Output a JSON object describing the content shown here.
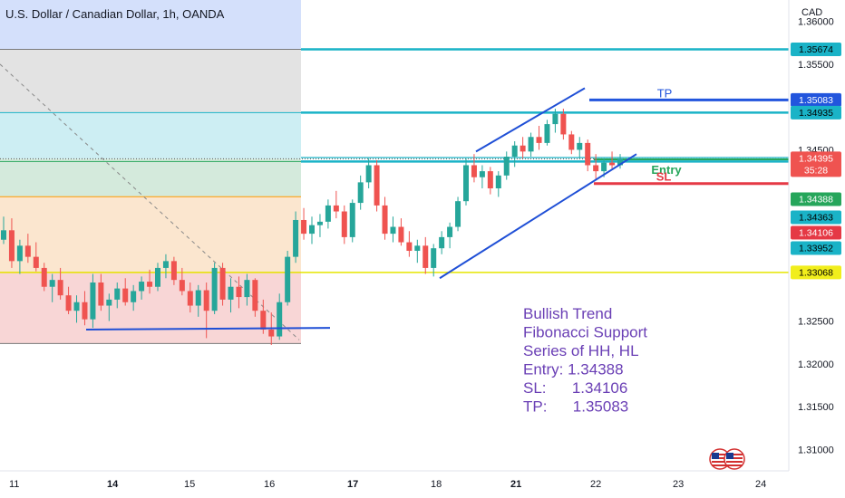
{
  "header": {
    "title": "U.S. Dollar / Canadian Dollar, 1h, OANDA",
    "currency": "CAD"
  },
  "chart_data": {
    "type": "candlestick",
    "symbol": "USD/CAD",
    "interval": "1h",
    "broker": "OANDA",
    "ylim": [
      1.3075,
      1.3625
    ],
    "price_ticks": [
      "1.36000",
      "1.35500",
      "1.34500",
      "1.32500",
      "1.32000",
      "1.31500",
      "1.31000"
    ],
    "x_ticks": [
      "11",
      "14",
      "15",
      "16",
      "17",
      "18",
      "21",
      "22",
      "23",
      "24"
    ],
    "fib_zones": [
      {
        "top": 1.3625,
        "bottom": 1.35674,
        "fill": "#d4e0fb"
      },
      {
        "top": 1.35674,
        "bottom": 1.34935,
        "fill": "#e3e3e3"
      },
      {
        "top": 1.34935,
        "bottom": 1.34395,
        "fill": "#cdeef3"
      },
      {
        "top": 1.34395,
        "bottom": 1.34363,
        "fill": "#d4eadc"
      },
      {
        "top": 1.34363,
        "bottom": 1.33952,
        "fill": "#d4eadc"
      },
      {
        "top": 1.33952,
        "bottom": 1.33068,
        "fill": "#fbe6cf"
      },
      {
        "top": 1.33068,
        "bottom": 1.32237,
        "fill": "#f8d6d6"
      }
    ],
    "levels": [
      {
        "price": 1.35674,
        "label": "1.35674",
        "color": "#1ab3c7",
        "labelBg": "#1ab3c7",
        "labelText": "#000000"
      },
      {
        "price": 1.35083,
        "label": "1.35083",
        "color": "#2255dd",
        "labelBg": "#2255dd",
        "labelText": "#ffffff"
      },
      {
        "price": 1.34935,
        "label": "1.34935",
        "color": "#1ab3c7",
        "labelBg": "#1ab3c7",
        "labelText": "#000000"
      },
      {
        "price": 1.34395,
        "label": "1.34395",
        "color": "#e53935",
        "labelBg": "#ef5350",
        "labelText": "#ffffff",
        "sublabel": "35:28"
      },
      {
        "price": 1.34388,
        "label": "1.34388",
        "color": "#26a65b",
        "labelBg": "#26a65b",
        "labelText": "#ffffff"
      },
      {
        "price": 1.34363,
        "label": "1.34363",
        "color": "#1ab3c7",
        "labelBg": "#1ab3c7",
        "labelText": "#000000"
      },
      {
        "price": 1.34106,
        "label": "1.34106",
        "color": "#e53945",
        "labelBg": "#e53945",
        "labelText": "#ffffff"
      },
      {
        "price": 1.33952,
        "label": "1.33952",
        "color": "#1ab3c7",
        "labelBg": "#1ab3c7",
        "labelText": "#000000"
      },
      {
        "price": 1.33068,
        "label": "1.33068",
        "color": "#e6e600",
        "labelBg": "#f1ee1c",
        "labelText": "#000000"
      }
    ],
    "trade": {
      "tp_label": "TP",
      "entry_label": "Entry",
      "sl_label": "SL",
      "tp_color": "#2255dd",
      "entry_color": "#26a65b",
      "sl_color": "#e53945"
    },
    "candles": [
      [
        1.3345,
        1.3372,
        1.334,
        1.3356
      ],
      [
        1.3356,
        1.337,
        1.3312,
        1.332
      ],
      [
        1.332,
        1.3345,
        1.3305,
        1.3338
      ],
      [
        1.3338,
        1.3352,
        1.3318,
        1.3325
      ],
      [
        1.3325,
        1.3342,
        1.3308,
        1.3312
      ],
      [
        1.3312,
        1.3318,
        1.3285,
        1.329
      ],
      [
        1.329,
        1.3305,
        1.3272,
        1.3298
      ],
      [
        1.3298,
        1.3312,
        1.3275,
        1.328
      ],
      [
        1.328,
        1.329,
        1.3258,
        1.3262
      ],
      [
        1.3262,
        1.328,
        1.3248,
        1.3272
      ],
      [
        1.3272,
        1.3285,
        1.3245,
        1.3252
      ],
      [
        1.3252,
        1.3305,
        1.3242,
        1.3295
      ],
      [
        1.3295,
        1.3305,
        1.3262,
        1.3268
      ],
      [
        1.3268,
        1.3282,
        1.325,
        1.3275
      ],
      [
        1.3275,
        1.3295,
        1.3265,
        1.3288
      ],
      [
        1.3288,
        1.33,
        1.3268,
        1.3272
      ],
      [
        1.3272,
        1.3292,
        1.3262,
        1.3285
      ],
      [
        1.3285,
        1.3302,
        1.3275,
        1.3296
      ],
      [
        1.3296,
        1.331,
        1.3282,
        1.329
      ],
      [
        1.329,
        1.3318,
        1.3285,
        1.3312
      ],
      [
        1.3312,
        1.3328,
        1.33,
        1.332
      ],
      [
        1.332,
        1.3325,
        1.3292,
        1.3298
      ],
      [
        1.3298,
        1.3312,
        1.328,
        1.3285
      ],
      [
        1.3285,
        1.3295,
        1.326,
        1.3268
      ],
      [
        1.3268,
        1.3292,
        1.3255,
        1.3286
      ],
      [
        1.3286,
        1.3295,
        1.323,
        1.3262
      ],
      [
        1.3262,
        1.3318,
        1.3258,
        1.3312
      ],
      [
        1.3312,
        1.3318,
        1.3268,
        1.3275
      ],
      [
        1.3275,
        1.33,
        1.326,
        1.329
      ],
      [
        1.329,
        1.3302,
        1.3265,
        1.3278
      ],
      [
        1.3278,
        1.3305,
        1.3268,
        1.3298
      ],
      [
        1.3298,
        1.33,
        1.3255,
        1.3262
      ],
      [
        1.3262,
        1.3275,
        1.3235,
        1.324
      ],
      [
        1.324,
        1.326,
        1.3222,
        1.3232
      ],
      [
        1.3232,
        1.3282,
        1.3228,
        1.3272
      ],
      [
        1.3272,
        1.3332,
        1.3268,
        1.3325
      ],
      [
        1.3325,
        1.3378,
        1.3318,
        1.3368
      ],
      [
        1.3368,
        1.3382,
        1.3345,
        1.3352
      ],
      [
        1.3352,
        1.3372,
        1.334,
        1.3362
      ],
      [
        1.3362,
        1.3375,
        1.3348,
        1.3366
      ],
      [
        1.3366,
        1.3392,
        1.3358,
        1.3385
      ],
      [
        1.3385,
        1.3402,
        1.337,
        1.3378
      ],
      [
        1.3378,
        1.3385,
        1.334,
        1.3348
      ],
      [
        1.3348,
        1.3392,
        1.3342,
        1.3388
      ],
      [
        1.3388,
        1.342,
        1.338,
        1.3412
      ],
      [
        1.3412,
        1.344,
        1.3405,
        1.3432
      ],
      [
        1.3432,
        1.3438,
        1.3378,
        1.3385
      ],
      [
        1.3385,
        1.3395,
        1.3345,
        1.3352
      ],
      [
        1.3352,
        1.3372,
        1.3342,
        1.336
      ],
      [
        1.336,
        1.337,
        1.3338,
        1.3342
      ],
      [
        1.3342,
        1.3355,
        1.3325,
        1.3332
      ],
      [
        1.3332,
        1.3345,
        1.3318,
        1.3338
      ],
      [
        1.3338,
        1.3348,
        1.3305,
        1.3312
      ],
      [
        1.3312,
        1.334,
        1.3302,
        1.3335
      ],
      [
        1.3335,
        1.3355,
        1.3328,
        1.3348
      ],
      [
        1.3348,
        1.3365,
        1.3335,
        1.336
      ],
      [
        1.336,
        1.3395,
        1.3355,
        1.339
      ],
      [
        1.339,
        1.344,
        1.3385,
        1.3432
      ],
      [
        1.3432,
        1.3445,
        1.3412,
        1.3418
      ],
      [
        1.3418,
        1.3432,
        1.3405,
        1.3425
      ],
      [
        1.3425,
        1.343,
        1.3398,
        1.3405
      ],
      [
        1.3405,
        1.3425,
        1.3395,
        1.342
      ],
      [
        1.342,
        1.3448,
        1.3415,
        1.3442
      ],
      [
        1.3442,
        1.346,
        1.343,
        1.3455
      ],
      [
        1.3455,
        1.3465,
        1.344,
        1.3448
      ],
      [
        1.3448,
        1.347,
        1.3442,
        1.3465
      ],
      [
        1.3465,
        1.3478,
        1.345,
        1.3458
      ],
      [
        1.3458,
        1.3485,
        1.3455,
        1.348
      ],
      [
        1.348,
        1.3498,
        1.347,
        1.3492
      ],
      [
        1.3492,
        1.3498,
        1.3462,
        1.3468
      ],
      [
        1.3468,
        1.3472,
        1.3445,
        1.345
      ],
      [
        1.345,
        1.3465,
        1.344,
        1.3458
      ],
      [
        1.3458,
        1.3462,
        1.3425,
        1.3432
      ],
      [
        1.3432,
        1.3445,
        1.3415,
        1.3425
      ],
      [
        1.3425,
        1.344,
        1.3418,
        1.3435
      ],
      [
        1.3435,
        1.3448,
        1.3428,
        1.3432
      ],
      [
        1.3432,
        1.3445,
        1.3428,
        1.344
      ]
    ],
    "trendlines": [
      {
        "name": "channel-upper",
        "from": [
          0.0,
          1.344
        ],
        "to": [
          0.0,
          1.351
        ],
        "color": "#1f4fd6"
      },
      {
        "name": "channel-lower",
        "from": [
          0.0,
          1.33
        ],
        "to": [
          0.0,
          1.3445
        ],
        "color": "#1f4fd6"
      },
      {
        "name": "range-support",
        "from": [
          0.0,
          1.324
        ],
        "to": [
          0.0,
          1.324
        ],
        "color": "#1f4fd6"
      }
    ],
    "annotation": {
      "lines": [
        "Bullish Trend",
        "Fibonacci Support",
        "Series of HH, HL",
        "Entry: 1.34388",
        "SL:      1.34106",
        "TP:      1.35083"
      ],
      "color": "#6a3fb5"
    }
  }
}
